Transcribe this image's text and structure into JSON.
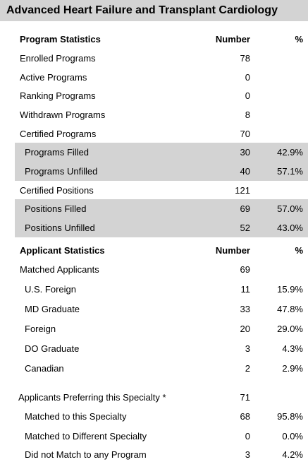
{
  "title": "Advanced Heart Failure and Transplant Cardiology",
  "program": {
    "header": {
      "label": "Program Statistics",
      "number": "Number",
      "percent": "%"
    },
    "rows": [
      {
        "label": "Enrolled Programs",
        "number": "78",
        "percent": ""
      },
      {
        "label": "Active Programs",
        "number": "0",
        "percent": ""
      },
      {
        "label": "Ranking Programs",
        "number": "0",
        "percent": ""
      },
      {
        "label": "Withdrawn Programs",
        "number": "8",
        "percent": ""
      },
      {
        "label": "Certified Programs",
        "number": "70",
        "percent": ""
      },
      {
        "label": "Programs Filled",
        "number": "30",
        "percent": "42.9%"
      },
      {
        "label": "Programs Unfilled",
        "number": "40",
        "percent": "57.1%"
      },
      {
        "label": "Certified Positions",
        "number": "121",
        "percent": ""
      },
      {
        "label": "Positions Filled",
        "number": "69",
        "percent": "57.0%"
      },
      {
        "label": "Positions Unfilled",
        "number": "52",
        "percent": "43.0%"
      }
    ]
  },
  "applicant": {
    "header": {
      "label": "Applicant Statistics",
      "number": "Number",
      "percent": "%"
    },
    "rows": [
      {
        "label": "Matched Applicants",
        "number": "69",
        "percent": ""
      },
      {
        "label": "U.S. Foreign",
        "number": "11",
        "percent": "15.9%"
      },
      {
        "label": "MD Graduate",
        "number": "33",
        "percent": "47.8%"
      },
      {
        "label": "Foreign",
        "number": "20",
        "percent": "29.0%"
      },
      {
        "label": "DO Graduate",
        "number": "3",
        "percent": "4.3%"
      },
      {
        "label": "Canadian",
        "number": "2",
        "percent": "2.9%"
      },
      {
        "label": "Applicants Preferring this Specialty *",
        "number": "71",
        "percent": ""
      },
      {
        "label": "Matched to this Specialty",
        "number": "68",
        "percent": "95.8%"
      },
      {
        "label": "Matched to Different Specialty",
        "number": "0",
        "percent": "0.0%"
      },
      {
        "label": "Did not Match to any Program",
        "number": "3",
        "percent": "4.2%"
      }
    ]
  }
}
